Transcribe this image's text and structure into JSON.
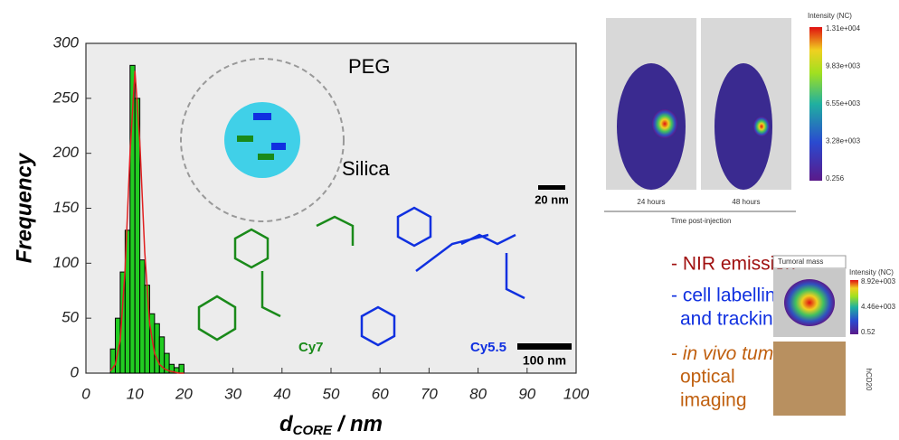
{
  "chart_data": {
    "type": "histogram",
    "ylabel": "Frequency",
    "xlabel": {
      "main": "d",
      "sub": "CORE",
      "rest": " / nm"
    },
    "bins": [
      5,
      6,
      7,
      8,
      9,
      10,
      11,
      12,
      13,
      14,
      15,
      16,
      17,
      18,
      19,
      20
    ],
    "counts": [
      22,
      50,
      92,
      130,
      280,
      250,
      103,
      80,
      54,
      45,
      33,
      18,
      8,
      5,
      8
    ],
    "color": "#22cc22",
    "fit": {
      "color": "#e02020",
      "x": [
        5,
        6,
        7,
        8,
        9,
        10,
        11,
        12,
        13,
        14,
        15,
        16,
        17,
        18,
        19,
        20
      ],
      "values": [
        2,
        8,
        30,
        95,
        200,
        275,
        210,
        110,
        45,
        18,
        8,
        4,
        2,
        1,
        0,
        0
      ]
    },
    "xlim": [
      0,
      100
    ],
    "xticks": [
      0,
      10,
      20,
      30,
      40,
      50,
      60,
      70,
      80,
      90,
      100
    ],
    "ylim": [
      0,
      300
    ],
    "yticks": [
      0,
      50,
      100,
      150,
      200,
      250,
      300
    ],
    "annotations": {
      "peg": "PEG",
      "silica": "Silica",
      "scale_small": "20 nm",
      "cy7": "Cy7",
      "cy55": "Cy5.5",
      "scale_large": "100 nm"
    }
  },
  "imaging": {
    "colorbar_title": "Intensity (NC)",
    "colorbar_ticks": [
      "1.31e+004",
      "9.83e+003",
      "6.55e+003",
      "3.28e+003",
      "0.256"
    ],
    "panels": [
      "24 hours",
      "48 hours"
    ],
    "caption": "Time post-injection"
  },
  "features": {
    "nir": "- NIR emission",
    "cell1": "- cell labelling",
    "cell2": "and tracking",
    "vivo_dash": "- ",
    "vivo_italic": "in vivo tumor",
    "optical": "optical",
    "imaging": "imaging"
  },
  "tumor": {
    "title": "Tumoral mass",
    "colorbar_title": "Intensity (NC)",
    "colorbar_ticks": [
      "8.92e+003",
      "4.46e+003",
      "0.52"
    ],
    "stain": "hCD20"
  }
}
